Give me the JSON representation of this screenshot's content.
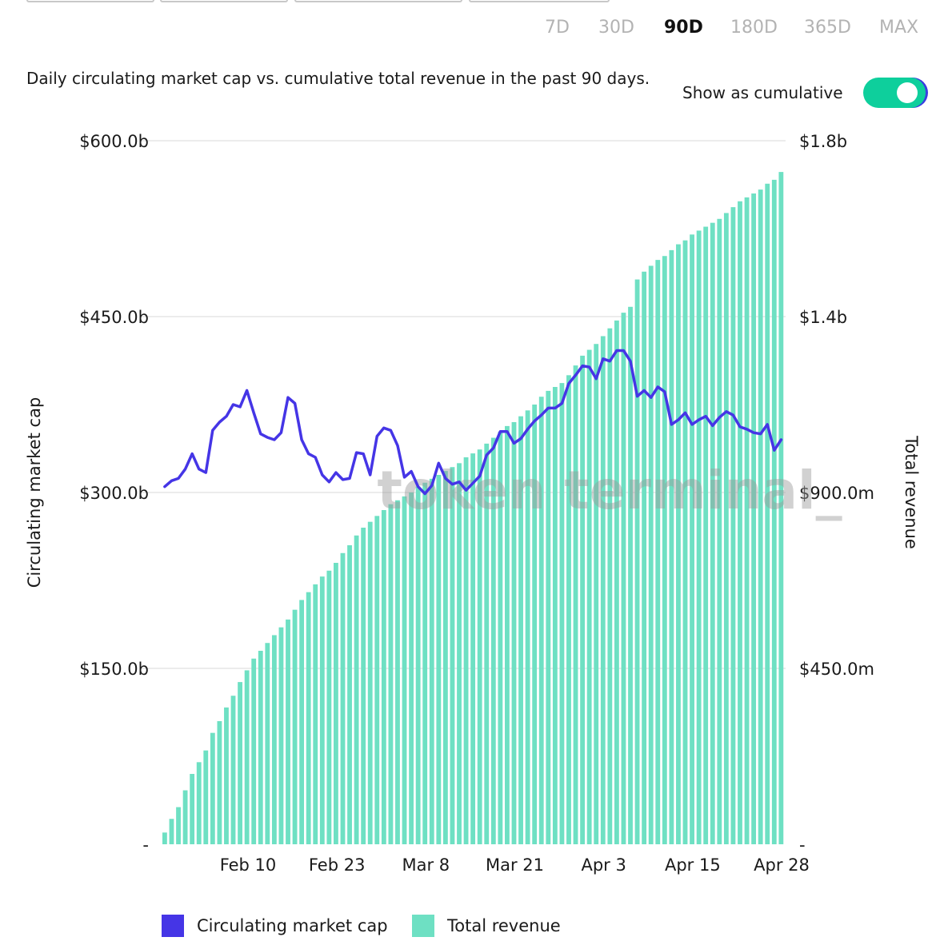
{
  "ranges": {
    "options": [
      "7D",
      "30D",
      "90D",
      "180D",
      "365D",
      "MAX"
    ],
    "selected": "90D"
  },
  "description": "Daily circulating market cap vs. cumulative total revenue in the past 90 days.",
  "toggle": {
    "label": "Show as cumulative",
    "on": true
  },
  "watermark": "token terminal_",
  "colors": {
    "market_cap": "#4535e6",
    "revenue": "#6ee0c3",
    "gridline": "#e6e6e6",
    "toggle_on": "#0ecf9c"
  },
  "chart_data": {
    "type": "bar+line",
    "left_axis": {
      "label": "Circulating market cap",
      "ticks": [
        "-",
        "$150.0b",
        "$300.0b",
        "$450.0b",
        "$600.0b"
      ],
      "range": [
        0,
        600
      ],
      "unit": "billion USD"
    },
    "right_axis": {
      "label": "Total revenue",
      "ticks": [
        "-",
        "$450.0m",
        "$900.0m",
        "$1.4b",
        "$1.8b"
      ],
      "range": [
        0,
        1800
      ],
      "unit": "million USD"
    },
    "x_ticks": [
      "Feb 10",
      "Feb 23",
      "Mar 8",
      "Mar 21",
      "Apr 3",
      "Apr 15",
      "Apr 28"
    ],
    "legend_position": "bottom-left",
    "grid": true,
    "series": [
      {
        "name": "Circulating market cap",
        "type": "line",
        "axis": "left",
        "values": [
          305,
          310,
          312,
          320,
          333,
          320,
          317,
          353,
          360,
          365,
          375,
          373,
          387,
          368,
          350,
          347,
          345,
          351,
          381,
          376,
          345,
          333,
          330,
          315,
          309,
          317,
          311,
          312,
          334,
          333,
          315,
          348,
          355,
          353,
          340,
          313,
          318,
          305,
          299,
          306,
          325,
          312,
          307,
          309,
          302,
          308,
          314,
          332,
          338,
          352,
          352,
          342,
          346,
          354,
          361,
          366,
          372,
          372,
          376,
          393,
          400,
          408,
          407,
          397,
          414,
          412,
          421,
          421,
          412,
          382,
          387,
          381,
          390,
          386,
          358,
          362,
          368,
          358,
          362,
          365,
          357,
          364,
          369,
          366,
          356,
          354,
          351,
          350,
          358,
          336,
          345
        ]
      },
      {
        "name": "Total revenue",
        "type": "bar",
        "axis": "right",
        "values": [
          30,
          65,
          95,
          138,
          180,
          210,
          240,
          285,
          315,
          350,
          380,
          415,
          445,
          475,
          495,
          515,
          535,
          555,
          575,
          600,
          625,
          645,
          665,
          685,
          700,
          720,
          745,
          765,
          790,
          810,
          825,
          840,
          855,
          870,
          880,
          890,
          900,
          915,
          925,
          935,
          945,
          955,
          965,
          975,
          990,
          1000,
          1010,
          1025,
          1040,
          1055,
          1070,
          1080,
          1095,
          1110,
          1125,
          1145,
          1160,
          1170,
          1180,
          1200,
          1225,
          1250,
          1265,
          1280,
          1300,
          1320,
          1340,
          1360,
          1375,
          1445,
          1465,
          1480,
          1495,
          1505,
          1520,
          1535,
          1545,
          1560,
          1570,
          1580,
          1590,
          1600,
          1615,
          1630,
          1645,
          1655,
          1665,
          1675,
          1690,
          1700,
          1720
        ]
      }
    ]
  }
}
